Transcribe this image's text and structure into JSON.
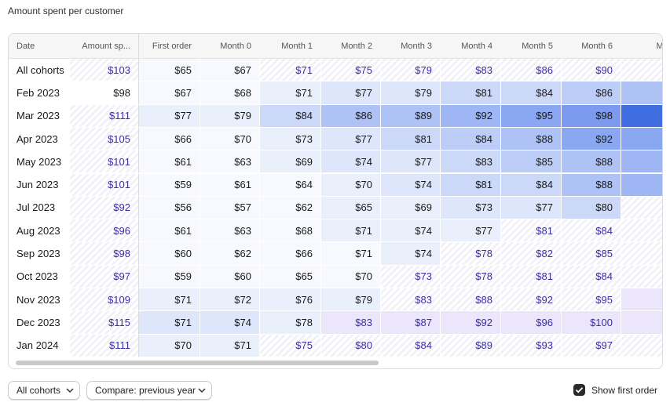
{
  "title": "Amount spent per customer",
  "table": {
    "columns": [
      "Date",
      "Amount sp...",
      "First order",
      "Month 0",
      "Month 1",
      "Month 2",
      "Month 3",
      "Month 4",
      "Month 5",
      "Month 6",
      "Mont"
    ],
    "rows": [
      [
        "All cohorts",
        "$103",
        "$65",
        "$67",
        "$71",
        "$75",
        "$79",
        "$83",
        "$86",
        "$90",
        "$"
      ],
      [
        "Feb 2023",
        "$98",
        "$67",
        "$68",
        "$71",
        "$77",
        "$79",
        "$81",
        "$84",
        "$86",
        "$"
      ],
      [
        "Mar 2023",
        "$111",
        "$77",
        "$79",
        "$84",
        "$86",
        "$89",
        "$92",
        "$95",
        "$98",
        "$"
      ],
      [
        "Apr 2023",
        "$105",
        "$66",
        "$70",
        "$73",
        "$77",
        "$81",
        "$84",
        "$88",
        "$92",
        "$"
      ],
      [
        "May 2023",
        "$101",
        "$61",
        "$63",
        "$69",
        "$74",
        "$77",
        "$83",
        "$85",
        "$88",
        "$"
      ],
      [
        "Jun 2023",
        "$101",
        "$59",
        "$61",
        "$64",
        "$70",
        "$74",
        "$81",
        "$84",
        "$88",
        "$"
      ],
      [
        "Jul 2023",
        "$92",
        "$56",
        "$57",
        "$62",
        "$65",
        "$69",
        "$73",
        "$77",
        "$80",
        "$"
      ],
      [
        "Aug 2023",
        "$96",
        "$61",
        "$63",
        "$68",
        "$71",
        "$74",
        "$77",
        "$81",
        "$84",
        "$"
      ],
      [
        "Sep 2023",
        "$98",
        "$60",
        "$62",
        "$66",
        "$71",
        "$74",
        "$78",
        "$82",
        "$85",
        "$"
      ],
      [
        "Oct 2023",
        "$97",
        "$59",
        "$60",
        "$65",
        "$70",
        "$73",
        "$78",
        "$81",
        "$84",
        "$"
      ],
      [
        "Nov 2023",
        "$109",
        "$71",
        "$72",
        "$76",
        "$79",
        "$83",
        "$88",
        "$92",
        "$95",
        "$"
      ],
      [
        "Dec 2023",
        "$115",
        "$71",
        "$74",
        "$78",
        "$83",
        "$87",
        "$92",
        "$96",
        "$100",
        "$"
      ],
      [
        "Jan 2024",
        "$111",
        "$70",
        "$71",
        "$75",
        "$80",
        "$84",
        "$89",
        "$93",
        "$97",
        "$"
      ]
    ]
  },
  "controls": {
    "cohort_filter": "All cohorts",
    "compare": "Compare: previous year",
    "show_first_order": "Show first order"
  }
}
